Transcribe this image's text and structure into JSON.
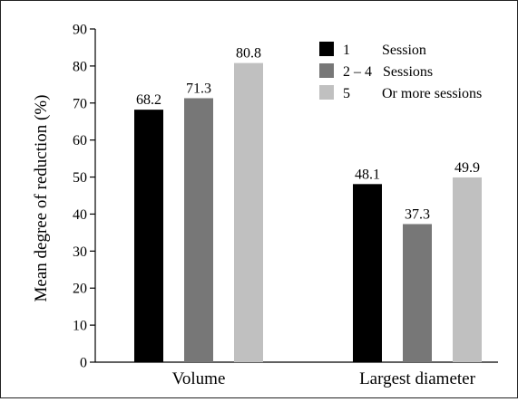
{
  "chart_data": {
    "type": "bar",
    "title": "",
    "xlabel": "",
    "ylabel": "Mean degree of reduction (%)",
    "ylim": [
      0,
      90
    ],
    "yticks": [
      0,
      10,
      20,
      30,
      40,
      50,
      60,
      70,
      80,
      90
    ],
    "categories": [
      "Volume",
      "Largest diameter"
    ],
    "series": [
      {
        "name": "1 Session",
        "legend_number": "1",
        "legend_text": "Session",
        "color": "#000000",
        "values": [
          68.2,
          48.1
        ]
      },
      {
        "name": "2 – 4 Sessions",
        "legend_number": "2 – 4",
        "legend_text": "Sessions",
        "color": "#777777",
        "values": [
          71.3,
          37.3
        ]
      },
      {
        "name": "5 Or more sessions",
        "legend_number": "5",
        "legend_text": "Or more sessions",
        "color": "#c0c0c0",
        "values": [
          80.8,
          49.9
        ]
      }
    ],
    "value_labels": [
      [
        "68.2",
        "48.1"
      ],
      [
        "71.3",
        "37.3"
      ],
      [
        "80.8",
        "49.9"
      ]
    ],
    "grid": false,
    "legend_position": "top-right"
  }
}
